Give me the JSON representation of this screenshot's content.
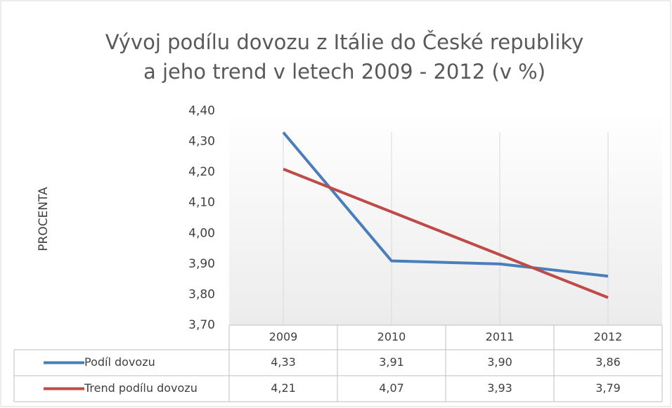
{
  "chart_data": {
    "type": "line",
    "title": [
      "Vývoj podílu dovozu z Itálie do České republiky",
      "a jeho trend v letech 2009 - 2012 (v %)"
    ],
    "ylabel": "PROCENTA",
    "categories": [
      "2009",
      "2010",
      "2011",
      "2012"
    ],
    "series": [
      {
        "name": "Podíl dovozu",
        "color": "#4a7ebb",
        "values": [
          4.33,
          3.91,
          3.9,
          3.86
        ],
        "value_labels": [
          "4,33",
          "3,91",
          "3,90",
          "3,86"
        ]
      },
      {
        "name": "Trend podílu dovozu",
        "color": "#be4b48",
        "values": [
          4.21,
          4.07,
          3.93,
          3.79
        ],
        "value_labels": [
          "4,21",
          "4,07",
          "3,93",
          "3,79"
        ]
      }
    ],
    "ylim": [
      3.7,
      4.4
    ],
    "yticks": [
      {
        "value": 3.7,
        "label": "3,70"
      },
      {
        "value": 3.8,
        "label": "3,80"
      },
      {
        "value": 3.9,
        "label": "3,90"
      },
      {
        "value": 4.0,
        "label": "4,00"
      },
      {
        "value": 4.1,
        "label": "4,10"
      },
      {
        "value": 4.2,
        "label": "4,20"
      },
      {
        "value": 4.3,
        "label": "4,30"
      },
      {
        "value": 4.4,
        "label": "4,40"
      }
    ],
    "grid": true,
    "data_table": true
  }
}
